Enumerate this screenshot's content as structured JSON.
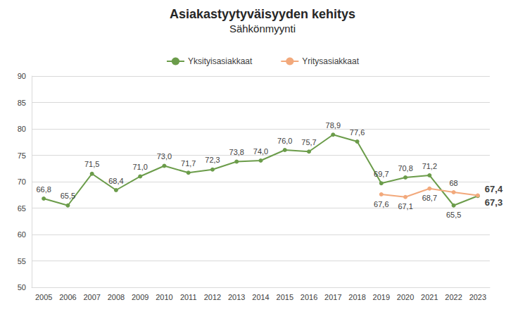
{
  "chart_data": {
    "type": "line",
    "title": "Asiakastyytyväisyyden kehitys",
    "subtitle": "Sähkönmyynti",
    "categories": [
      "2005",
      "2006",
      "2007",
      "2008",
      "2009",
      "2010",
      "2011",
      "2012",
      "2013",
      "2014",
      "2015",
      "2016",
      "2017",
      "2018",
      "2019",
      "2020",
      "2021",
      "2022",
      "2023"
    ],
    "series": [
      {
        "name": "Yksityisasiakkaat",
        "color": "#6b9c4a",
        "marker": "circle",
        "values": [
          66.8,
          65.5,
          71.5,
          68.4,
          71.0,
          73.0,
          71.7,
          72.3,
          73.8,
          74.0,
          76.0,
          75.7,
          78.9,
          77.6,
          69.7,
          70.8,
          71.2,
          65.5,
          67.3
        ],
        "value_labels": [
          "66,8",
          "65,5",
          "71,5",
          "68,4",
          "71,0",
          "73,0",
          "71,7",
          "72,3",
          "73,8",
          "74,0",
          "76,0",
          "75,7",
          "78,9",
          "77,6",
          "69,7",
          "70,8",
          "71,2",
          "65,5",
          "67,3"
        ]
      },
      {
        "name": "Yritysasiakkaat",
        "color": "#f2a97c",
        "marker": "circle",
        "values": [
          null,
          null,
          null,
          null,
          null,
          null,
          null,
          null,
          null,
          null,
          null,
          null,
          null,
          null,
          67.6,
          67.1,
          68.7,
          68,
          67.4
        ],
        "value_labels": [
          null,
          null,
          null,
          null,
          null,
          null,
          null,
          null,
          null,
          null,
          null,
          null,
          null,
          null,
          "67,6",
          "67,1",
          "68,7",
          "68",
          "67,4"
        ]
      }
    ],
    "ylim": [
      50,
      90
    ],
    "yticks": [
      50,
      55,
      60,
      65,
      70,
      75,
      80,
      85,
      90
    ],
    "grid": true,
    "legend": "top",
    "data_labels": true
  }
}
